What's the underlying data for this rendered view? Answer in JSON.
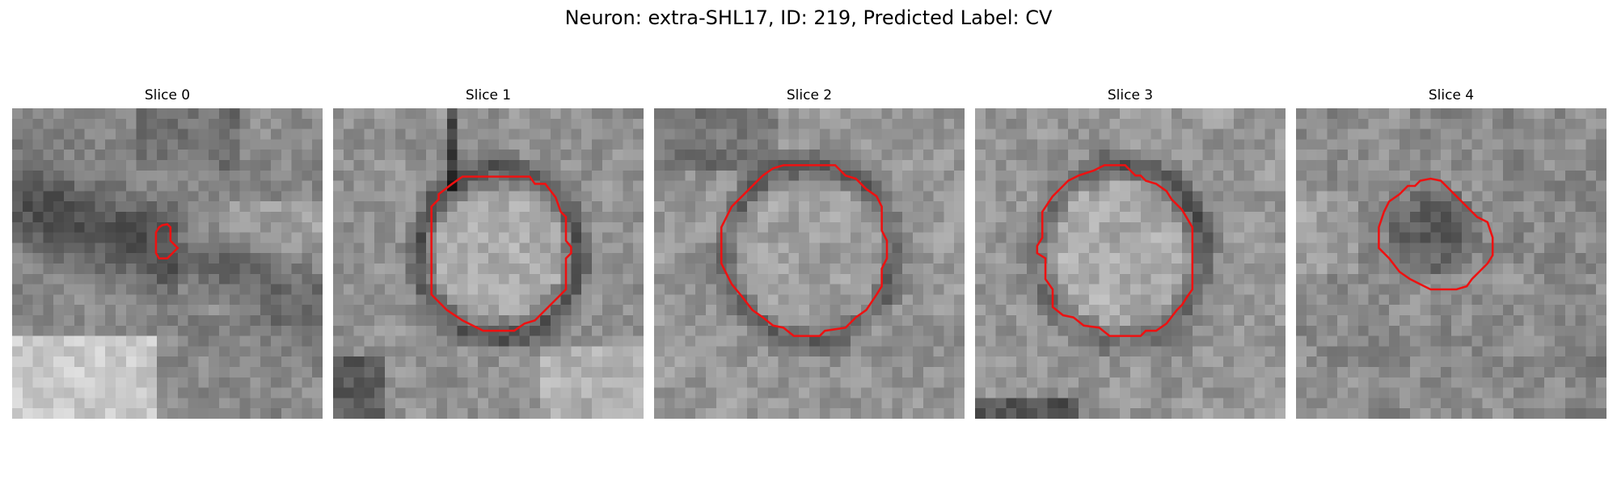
{
  "figure": {
    "title": "Neuron: extra-SHL17, ID: 219, Predicted Label: CV",
    "contour_color": "#ee1111",
    "colormap": "gray"
  },
  "panels": [
    {
      "title": "Slice 0",
      "image": "grayscale microscopy patch",
      "contour": [
        [
          14.2,
          11.5
        ],
        [
          14.5,
          11.3
        ],
        [
          15.0,
          11.2
        ],
        [
          15.3,
          11.5
        ],
        [
          15.3,
          12.8
        ],
        [
          16.0,
          13.5
        ],
        [
          15.0,
          14.5
        ],
        [
          14.2,
          14.5
        ],
        [
          13.9,
          14.0
        ],
        [
          13.9,
          12.0
        ]
      ]
    },
    {
      "title": "Slice 1",
      "image": "grayscale microscopy patch",
      "contour": [
        [
          15.0,
          6.6
        ],
        [
          19.0,
          6.6
        ],
        [
          19.5,
          7.3
        ],
        [
          20.5,
          7.3
        ],
        [
          21.5,
          8.6
        ],
        [
          22.0,
          10.0
        ],
        [
          22.5,
          10.5
        ],
        [
          22.5,
          12.8
        ],
        [
          23.0,
          13.4
        ],
        [
          23.0,
          14.0
        ],
        [
          22.5,
          14.5
        ],
        [
          22.5,
          17.5
        ],
        [
          19.5,
          20.5
        ],
        [
          18.5,
          20.8
        ],
        [
          17.5,
          21.5
        ],
        [
          14.5,
          21.5
        ],
        [
          12.5,
          20.5
        ],
        [
          11.0,
          19.5
        ],
        [
          9.5,
          18.0
        ],
        [
          9.5,
          9.5
        ],
        [
          10.2,
          8.8
        ],
        [
          10.2,
          8.3
        ],
        [
          11.5,
          7.3
        ],
        [
          12.5,
          6.6
        ]
      ]
    },
    {
      "title": "Slice 2",
      "image": "grayscale microscopy patch",
      "contour": [
        [
          12.5,
          5.5
        ],
        [
          17.5,
          5.5
        ],
        [
          18.5,
          6.5
        ],
        [
          19.5,
          6.8
        ],
        [
          20.5,
          7.8
        ],
        [
          21.5,
          8.5
        ],
        [
          22.0,
          9.5
        ],
        [
          22.0,
          11.8
        ],
        [
          22.5,
          12.8
        ],
        [
          22.5,
          14.5
        ],
        [
          22.0,
          15.5
        ],
        [
          22.0,
          17.2
        ],
        [
          21.5,
          18.0
        ],
        [
          20.5,
          19.5
        ],
        [
          19.5,
          20.2
        ],
        [
          18.5,
          21.2
        ],
        [
          16.5,
          21.5
        ],
        [
          16.0,
          22.0
        ],
        [
          13.5,
          22.0
        ],
        [
          12.5,
          21.2
        ],
        [
          11.5,
          21.0
        ],
        [
          10.5,
          20.2
        ],
        [
          9.5,
          19.5
        ],
        [
          8.5,
          18.2
        ],
        [
          7.5,
          17.0
        ],
        [
          6.5,
          15.0
        ],
        [
          6.5,
          11.5
        ],
        [
          7.0,
          10.5
        ],
        [
          7.5,
          9.5
        ],
        [
          8.5,
          8.5
        ],
        [
          9.5,
          7.5
        ],
        [
          10.5,
          6.5
        ],
        [
          11.5,
          5.8
        ]
      ]
    },
    {
      "title": "Slice 3",
      "image": "grayscale microscopy patch",
      "contour": [
        [
          12.5,
          5.5
        ],
        [
          14.5,
          5.5
        ],
        [
          15.5,
          6.5
        ],
        [
          16.0,
          6.5
        ],
        [
          16.5,
          7.0
        ],
        [
          17.5,
          7.3
        ],
        [
          18.5,
          8.0
        ],
        [
          19.0,
          8.8
        ],
        [
          20.0,
          9.8
        ],
        [
          21.0,
          11.5
        ],
        [
          21.0,
          17.5
        ],
        [
          20.5,
          18.2
        ],
        [
          20.0,
          19.0
        ],
        [
          19.5,
          19.5
        ],
        [
          18.5,
          20.8
        ],
        [
          17.5,
          21.5
        ],
        [
          16.5,
          21.5
        ],
        [
          16.0,
          22.0
        ],
        [
          13.0,
          22.0
        ],
        [
          12.0,
          21.2
        ],
        [
          10.5,
          21.0
        ],
        [
          9.5,
          20.2
        ],
        [
          8.5,
          20.0
        ],
        [
          7.5,
          19.2
        ],
        [
          7.5,
          17.5
        ],
        [
          6.8,
          16.5
        ],
        [
          6.8,
          14.5
        ],
        [
          6.0,
          14.0
        ],
        [
          6.0,
          13.3
        ],
        [
          6.5,
          12.5
        ],
        [
          6.5,
          10.0
        ],
        [
          7.5,
          8.5
        ],
        [
          8.5,
          7.5
        ],
        [
          9.0,
          7.0
        ],
        [
          10.0,
          6.5
        ],
        [
          11.5,
          6.0
        ]
      ]
    },
    {
      "title": "Slice 4",
      "image": "grayscale microscopy patch",
      "contour": [
        [
          11.5,
          7.5
        ],
        [
          12.0,
          7.0
        ],
        [
          13.0,
          6.8
        ],
        [
          14.0,
          7.0
        ],
        [
          14.5,
          7.5
        ],
        [
          15.5,
          8.5
        ],
        [
          16.5,
          9.5
        ],
        [
          17.5,
          10.5
        ],
        [
          18.5,
          11.0
        ],
        [
          19.0,
          12.5
        ],
        [
          19.0,
          14.2
        ],
        [
          18.5,
          15.0
        ],
        [
          17.0,
          16.5
        ],
        [
          16.5,
          17.2
        ],
        [
          15.5,
          17.5
        ],
        [
          13.0,
          17.5
        ],
        [
          12.0,
          17.0
        ],
        [
          11.0,
          16.5
        ],
        [
          10.0,
          15.8
        ],
        [
          9.0,
          14.5
        ],
        [
          8.0,
          13.5
        ],
        [
          8.0,
          11.5
        ],
        [
          8.5,
          10.0
        ],
        [
          9.0,
          9.0
        ],
        [
          10.0,
          8.3
        ],
        [
          10.8,
          7.5
        ]
      ]
    }
  ]
}
